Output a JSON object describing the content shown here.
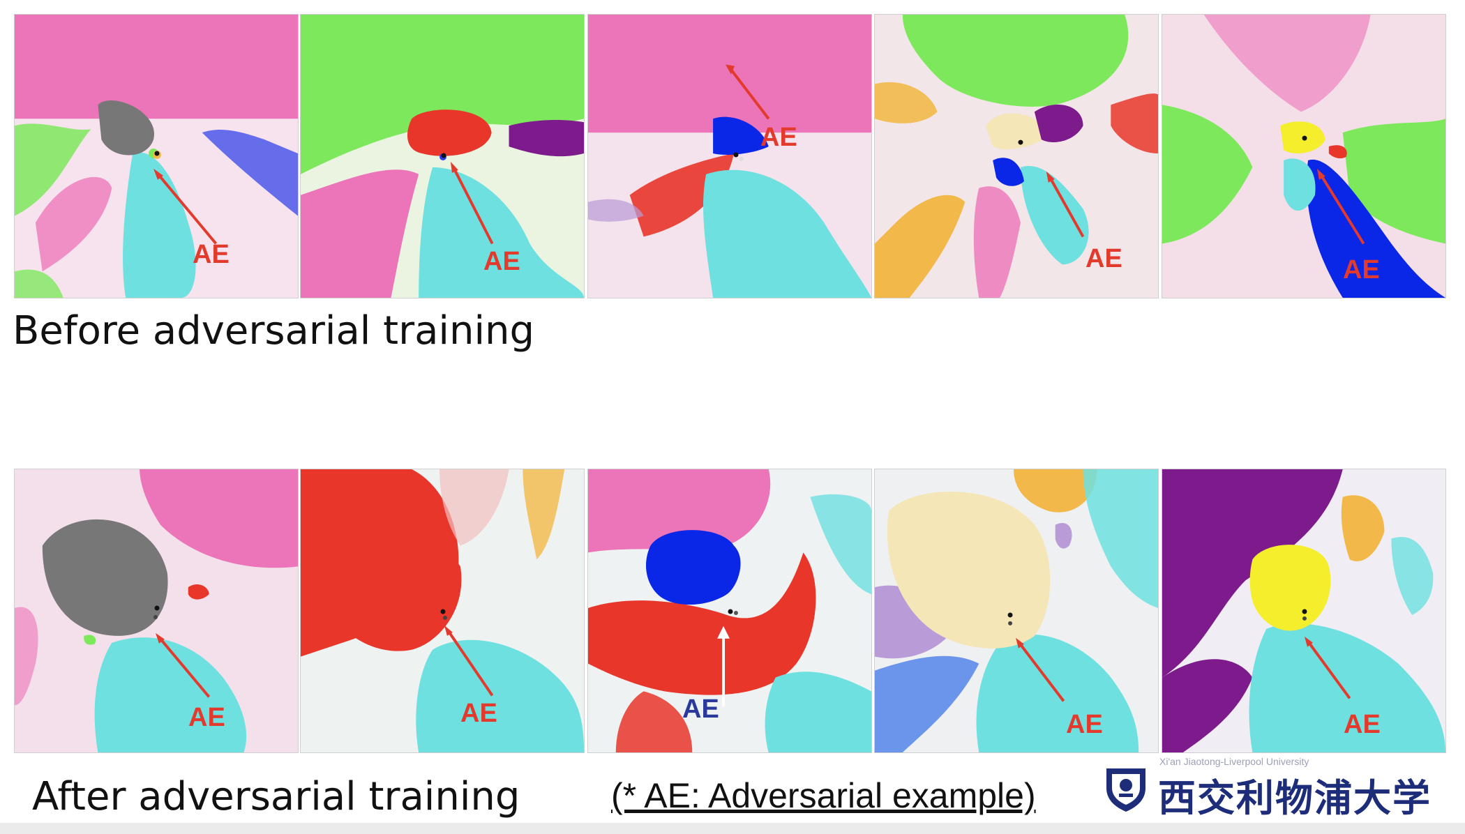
{
  "captions": {
    "before": "Before adversarial training",
    "after": "After adversarial training",
    "footnote": "(* AE: Adversarial example)"
  },
  "logo": {
    "name": "西交利物浦大学",
    "subtitle": "Xi'an Jiaotong-Liverpool University"
  },
  "ae_label": "AE",
  "colors": {
    "pink": "#ec74b8",
    "green": "#7ee85c",
    "cyan": "#6ee0e0",
    "red": "#e8362a",
    "blue": "#0a26e6",
    "purple": "#7d1a8c",
    "gray": "#777777",
    "yellow": "#f5ee2c",
    "cream": "#f4e6b6",
    "orange": "#f2b94a",
    "arrow_red": "#e23a2c",
    "arrow_white": "#ffffff",
    "ae_text_red": "#e23a2c",
    "ae_text_blue": "#2a3a9c"
  }
}
